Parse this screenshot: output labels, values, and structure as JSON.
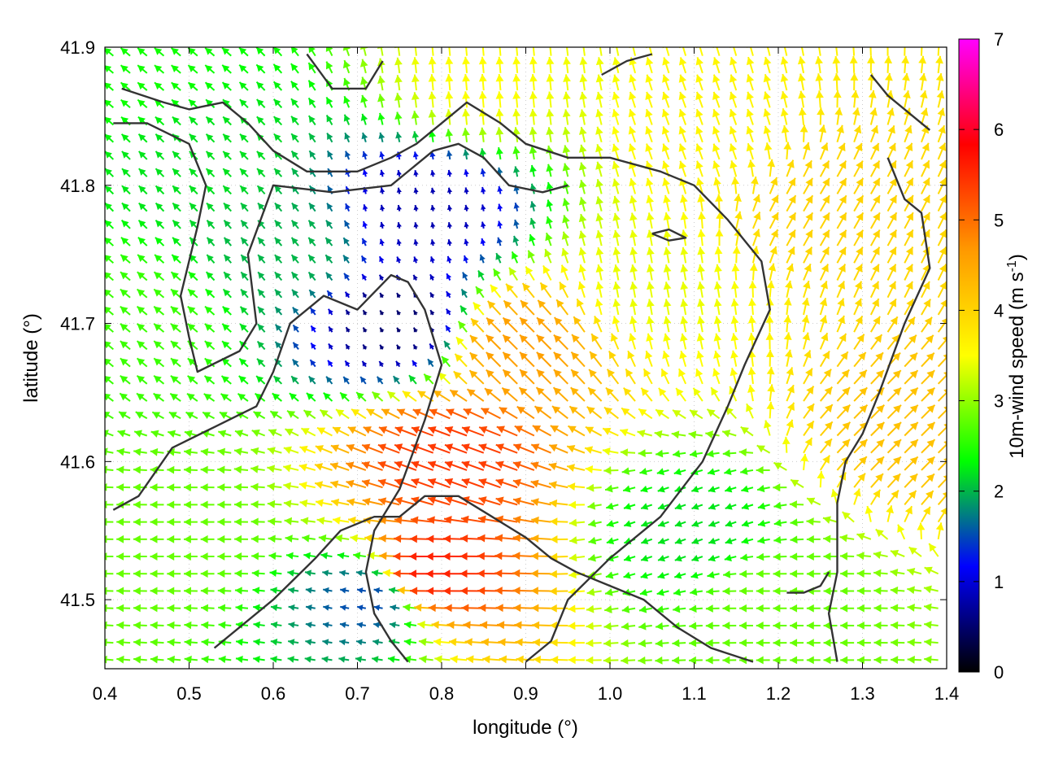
{
  "chart_data": {
    "type": "vector-field",
    "xlabel": "longitude (°)",
    "ylabel": "latitude (°)",
    "xlim": [
      0.4,
      1.4
    ],
    "ylim": [
      41.45,
      41.9
    ],
    "xticks": [
      "0.4",
      "0.5",
      "0.6",
      "0.7",
      "0.8",
      "0.9",
      "1.0",
      "1.1",
      "1.2",
      "1.3",
      "1.4"
    ],
    "yticks": [
      "41.5",
      "41.6",
      "41.7",
      "41.8",
      "41.9"
    ],
    "colorbar": {
      "label_main": "10m-wind speed (m s",
      "label_sup": "-1",
      "label_end": ")",
      "range": [
        0,
        7
      ],
      "ticks": [
        "0",
        "1",
        "2",
        "3",
        "4",
        "5",
        "6",
        "7"
      ],
      "stops": [
        "#000000",
        "#0000ff",
        "#00ff00",
        "#ffff00",
        "#ff9900",
        "#ff0000",
        "#ff00ff"
      ]
    },
    "wind_regions": [
      {
        "lon": 0.52,
        "lat": 41.82,
        "speed": 2.2,
        "dir_deg": 135
      },
      {
        "lon": 0.45,
        "lat": 41.7,
        "speed": 2.6,
        "dir_deg": 140
      },
      {
        "lon": 0.5,
        "lat": 41.55,
        "speed": 2.8,
        "dir_deg": 180
      },
      {
        "lon": 0.62,
        "lat": 41.75,
        "speed": 2.0,
        "dir_deg": 130
      },
      {
        "lon": 0.78,
        "lat": 41.78,
        "speed": 0.8,
        "dir_deg": 100
      },
      {
        "lon": 0.75,
        "lat": 41.7,
        "speed": 0.5,
        "dir_deg": 120
      },
      {
        "lon": 0.82,
        "lat": 41.6,
        "speed": 5.4,
        "dir_deg": 160
      },
      {
        "lon": 0.8,
        "lat": 41.52,
        "speed": 5.6,
        "dir_deg": 180
      },
      {
        "lon": 0.9,
        "lat": 41.68,
        "speed": 4.6,
        "dir_deg": 135
      },
      {
        "lon": 1.05,
        "lat": 41.72,
        "speed": 3.4,
        "dir_deg": 100
      },
      {
        "lon": 1.12,
        "lat": 41.83,
        "speed": 3.6,
        "dir_deg": 110
      },
      {
        "lon": 1.25,
        "lat": 41.78,
        "speed": 4.0,
        "dir_deg": 60
      },
      {
        "lon": 1.35,
        "lat": 41.62,
        "speed": 4.2,
        "dir_deg": 45
      },
      {
        "lon": 1.1,
        "lat": 41.55,
        "speed": 2.2,
        "dir_deg": 200
      },
      {
        "lon": 1.2,
        "lat": 41.5,
        "speed": 2.8,
        "dir_deg": 180
      },
      {
        "lon": 0.72,
        "lat": 41.5,
        "speed": 1.5,
        "dir_deg": 170
      },
      {
        "lon": 0.85,
        "lat": 41.87,
        "speed": 3.5,
        "dir_deg": 95
      },
      {
        "lon": 0.45,
        "lat": 41.88,
        "speed": 2.4,
        "dir_deg": 140
      }
    ],
    "contour_lines": [
      [
        [
          0.42,
          41.87
        ],
        [
          0.47,
          41.86
        ],
        [
          0.5,
          41.855
        ],
        [
          0.54,
          41.86
        ],
        [
          0.57,
          41.845
        ],
        [
          0.6,
          41.825
        ],
        [
          0.64,
          41.81
        ],
        [
          0.7,
          41.81
        ],
        [
          0.74,
          41.82
        ],
        [
          0.77,
          41.83
        ],
        [
          0.8,
          41.845
        ],
        [
          0.83,
          41.86
        ],
        [
          0.87,
          41.845
        ],
        [
          0.9,
          41.83
        ],
        [
          0.95,
          41.82
        ],
        [
          1.0,
          41.82
        ],
        [
          1.06,
          41.81
        ],
        [
          1.1,
          41.8
        ],
        [
          1.14,
          41.775
        ],
        [
          1.18,
          41.745
        ],
        [
          1.19,
          41.71
        ],
        [
          1.16,
          41.67
        ],
        [
          1.14,
          41.64
        ],
        [
          1.11,
          41.6
        ],
        [
          1.06,
          41.56
        ],
        [
          1.0,
          41.53
        ],
        [
          0.95,
          41.5
        ],
        [
          0.93,
          41.47
        ],
        [
          0.9,
          41.455
        ]
      ],
      [
        [
          0.41,
          41.845
        ],
        [
          0.45,
          41.845
        ],
        [
          0.5,
          41.83
        ],
        [
          0.52,
          41.8
        ],
        [
          0.51,
          41.77
        ],
        [
          0.49,
          41.72
        ],
        [
          0.5,
          41.69
        ],
        [
          0.51,
          41.665
        ],
        [
          0.56,
          41.68
        ],
        [
          0.58,
          41.7
        ],
        [
          0.57,
          41.75
        ],
        [
          0.6,
          41.8
        ],
        [
          0.67,
          41.795
        ],
        [
          0.74,
          41.8
        ],
        [
          0.79,
          41.825
        ],
        [
          0.82,
          41.83
        ],
        [
          0.85,
          41.82
        ],
        [
          0.88,
          41.8
        ],
        [
          0.92,
          41.795
        ],
        [
          0.95,
          41.8
        ]
      ],
      [
        [
          0.41,
          41.565
        ],
        [
          0.44,
          41.575
        ],
        [
          0.48,
          41.61
        ],
        [
          0.53,
          41.625
        ],
        [
          0.58,
          41.64
        ],
        [
          0.6,
          41.665
        ],
        [
          0.62,
          41.7
        ],
        [
          0.66,
          41.72
        ],
        [
          0.7,
          41.71
        ],
        [
          0.74,
          41.735
        ],
        [
          0.76,
          41.73
        ],
        [
          0.78,
          41.71
        ],
        [
          0.8,
          41.67
        ],
        [
          0.78,
          41.63
        ],
        [
          0.75,
          41.58
        ],
        [
          0.72,
          41.55
        ],
        [
          0.71,
          41.52
        ],
        [
          0.72,
          41.49
        ],
        [
          0.74,
          41.47
        ],
        [
          0.76,
          41.455
        ]
      ],
      [
        [
          0.53,
          41.465
        ],
        [
          0.56,
          41.48
        ],
        [
          0.6,
          41.5
        ],
        [
          0.65,
          41.53
        ],
        [
          0.68,
          41.55
        ],
        [
          0.72,
          41.56
        ],
        [
          0.75,
          41.56
        ],
        [
          0.78,
          41.575
        ],
        [
          0.82,
          41.575
        ],
        [
          0.86,
          41.56
        ],
        [
          0.9,
          41.545
        ],
        [
          0.93,
          41.53
        ],
        [
          0.96,
          41.52
        ],
        [
          1.0,
          41.51
        ],
        [
          1.04,
          41.5
        ],
        [
          1.08,
          41.48
        ],
        [
          1.12,
          41.465
        ],
        [
          1.17,
          41.455
        ]
      ],
      [
        [
          1.33,
          41.82
        ],
        [
          1.35,
          41.79
        ],
        [
          1.37,
          41.78
        ],
        [
          1.38,
          41.74
        ],
        [
          1.35,
          41.7
        ],
        [
          1.32,
          41.65
        ],
        [
          1.3,
          41.62
        ],
        [
          1.28,
          41.6
        ],
        [
          1.27,
          41.57
        ],
        [
          1.27,
          41.52
        ],
        [
          1.26,
          41.49
        ],
        [
          1.27,
          41.455
        ]
      ],
      [
        [
          1.31,
          41.88
        ],
        [
          1.33,
          41.865
        ],
        [
          1.36,
          41.85
        ],
        [
          1.38,
          41.84
        ]
      ],
      [
        [
          0.64,
          41.895
        ],
        [
          0.67,
          41.87
        ],
        [
          0.71,
          41.87
        ],
        [
          0.73,
          41.89
        ]
      ],
      [
        [
          1.05,
          41.765
        ],
        [
          1.07,
          41.76
        ],
        [
          1.09,
          41.762
        ],
        [
          1.07,
          41.768
        ],
        [
          1.05,
          41.765
        ]
      ],
      [
        [
          1.21,
          41.505
        ],
        [
          1.23,
          41.505
        ],
        [
          1.25,
          41.51
        ],
        [
          1.26,
          41.52
        ]
      ],
      [
        [
          0.99,
          41.88
        ],
        [
          1.02,
          41.89
        ],
        [
          1.05,
          41.895
        ]
      ]
    ]
  }
}
